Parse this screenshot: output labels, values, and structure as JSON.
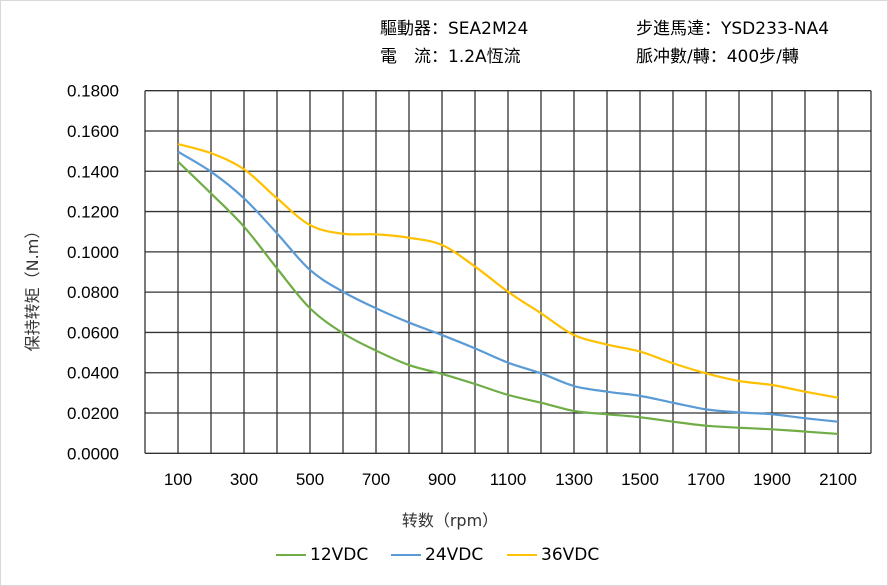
{
  "header": {
    "driver_label": "驅動器：",
    "driver_value": "SEA2M24",
    "motor_label": "步進馬達：",
    "motor_value": "YSD233-NA4",
    "current_label": "電　流：",
    "current_value": "1.2A恆流",
    "pulses_label": "脈冲數/轉：",
    "pulses_value": "400步/轉"
  },
  "chart_data": {
    "type": "line",
    "xlabel": "转数（rpm）",
    "ylabel": "保持转矩（N.m）",
    "xlim": [
      0,
      2200
    ],
    "ylim": [
      0,
      0.18
    ],
    "x_ticks": [
      "100",
      "300",
      "500",
      "700",
      "900",
      "1100",
      "1300",
      "1500",
      "1700",
      "1900",
      "2100"
    ],
    "y_ticks": [
      "0.0000",
      "0.0200",
      "0.0400",
      "0.0600",
      "0.0800",
      "0.1000",
      "0.1200",
      "0.1400",
      "0.1600",
      "0.1800"
    ],
    "grid": true,
    "legend_position": "bottom",
    "x": [
      100,
      200,
      300,
      400,
      500,
      600,
      700,
      800,
      900,
      1000,
      1100,
      1200,
      1300,
      1400,
      1500,
      1600,
      1700,
      1800,
      1900,
      2000,
      2100
    ],
    "series": [
      {
        "name": "12VDC",
        "color": "#70ad47",
        "values": [
          0.1448,
          0.129,
          0.1125,
          0.0918,
          0.072,
          0.0596,
          0.051,
          0.0438,
          0.0394,
          0.0344,
          0.029,
          0.0251,
          0.021,
          0.0194,
          0.0179,
          0.0157,
          0.0137,
          0.0127,
          0.0119,
          0.0108,
          0.0096
        ]
      },
      {
        "name": "24VDC",
        "color": "#5b9bd5",
        "values": [
          0.1497,
          0.1398,
          0.1266,
          0.1092,
          0.091,
          0.0802,
          0.072,
          0.0649,
          0.0587,
          0.0521,
          0.045,
          0.0397,
          0.0334,
          0.0306,
          0.0285,
          0.0251,
          0.0218,
          0.0203,
          0.0194,
          0.0174,
          0.0157
        ]
      },
      {
        "name": "36VDC",
        "color": "#ffc000",
        "values": [
          0.1535,
          0.149,
          0.141,
          0.1266,
          0.1133,
          0.109,
          0.1087,
          0.107,
          0.1034,
          0.0927,
          0.0802,
          0.0695,
          0.0587,
          0.054,
          0.0505,
          0.0447,
          0.0397,
          0.0359,
          0.0339,
          0.0306,
          0.0276
        ]
      }
    ]
  }
}
